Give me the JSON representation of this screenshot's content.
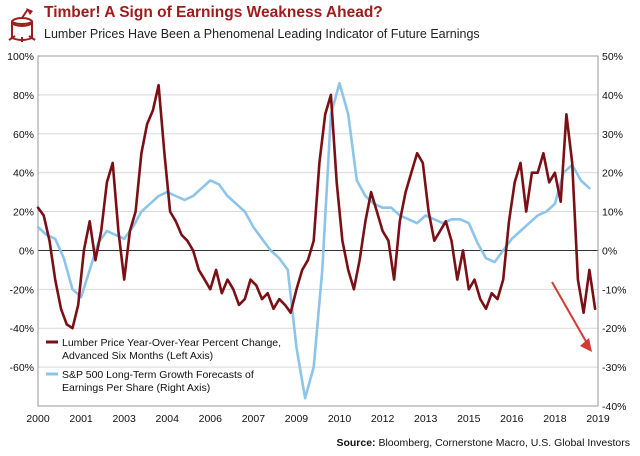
{
  "header": {
    "title": "Timber! A Sign of Earnings Weakness Ahead?",
    "subtitle": "Lumber Prices Have Been a Phenomenal Leading Indicator of Future Earnings"
  },
  "footer": {
    "source_label": "Source:",
    "source_text": "Bloomberg, Cornerstone Macro, U.S. Global Investors"
  },
  "colors": {
    "title": "#a01c1c",
    "lumber": "#7b0f16",
    "eps": "#8cc4ea",
    "arrow": "#d23b34",
    "grid": "#d9d9d9"
  },
  "icons": {
    "logo": "timber-stump-icon",
    "trend": "down-arrow-icon"
  },
  "chart_data": {
    "type": "line",
    "title": "Timber! A Sign of Earnings Weakness Ahead?",
    "subtitle": "Lumber Prices Have Been a Phenomenal Leading Indicator of Future Earnings",
    "x_tick_labels": [
      "2000",
      "2001",
      "2003",
      "2004",
      "2006",
      "2007",
      "2009",
      "2010",
      "2012",
      "2013",
      "2015",
      "2016",
      "2018",
      "2019"
    ],
    "x_tick_values": [
      2000.0,
      2001.5,
      2003.0,
      2004.5,
      2006.0,
      2007.5,
      2009.0,
      2010.5,
      2012.0,
      2013.5,
      2015.0,
      2016.5,
      2018.0,
      2019.5
    ],
    "xlim": [
      2000.0,
      2019.5
    ],
    "left_axis": {
      "ylim": [
        -80,
        100
      ],
      "ticks": [
        -60,
        -40,
        -20,
        0,
        20,
        40,
        60,
        80,
        100
      ],
      "tick_labels": [
        "-60%",
        "-40%",
        "-20%",
        "0%",
        "20%",
        "40%",
        "60%",
        "80%",
        "100%"
      ]
    },
    "right_axis": {
      "ylim": [
        -40,
        50
      ],
      "ticks": [
        -40,
        -30,
        -20,
        -10,
        0,
        10,
        20,
        30,
        40,
        50
      ],
      "tick_labels": [
        "-40%",
        "-30%",
        "-20%",
        "-10%",
        "0%",
        "10%",
        "20%",
        "30%",
        "40%",
        "50%"
      ]
    },
    "grid": true,
    "legend_position": "bottom-left",
    "annotations": [
      {
        "type": "arrow",
        "direction": "down-right",
        "near": "end of lumber series"
      }
    ],
    "series": [
      {
        "name": "Lumber Price Year-Over-Year Percent Change, Advanced Six Months (Left Axis)",
        "axis": "left",
        "color": "#7b0f16",
        "x": [
          2000.0,
          2000.2,
          2000.4,
          2000.6,
          2000.8,
          2001.0,
          2001.2,
          2001.4,
          2001.6,
          2001.8,
          2002.0,
          2002.2,
          2002.4,
          2002.6,
          2002.8,
          2003.0,
          2003.2,
          2003.4,
          2003.6,
          2003.8,
          2004.0,
          2004.2,
          2004.4,
          2004.6,
          2004.8,
          2005.0,
          2005.2,
          2005.4,
          2005.6,
          2005.8,
          2006.0,
          2006.2,
          2006.4,
          2006.6,
          2006.8,
          2007.0,
          2007.2,
          2007.4,
          2007.6,
          2007.8,
          2008.0,
          2008.2,
          2008.4,
          2008.6,
          2008.8,
          2009.0,
          2009.2,
          2009.4,
          2009.6,
          2009.8,
          2010.0,
          2010.2,
          2010.4,
          2010.6,
          2010.8,
          2011.0,
          2011.2,
          2011.4,
          2011.6,
          2011.8,
          2012.0,
          2012.2,
          2012.4,
          2012.6,
          2012.8,
          2013.0,
          2013.2,
          2013.4,
          2013.6,
          2013.8,
          2014.0,
          2014.2,
          2014.4,
          2014.6,
          2014.8,
          2015.0,
          2015.2,
          2015.4,
          2015.6,
          2015.8,
          2016.0,
          2016.2,
          2016.4,
          2016.6,
          2016.8,
          2017.0,
          2017.2,
          2017.4,
          2017.6,
          2017.8,
          2018.0,
          2018.2,
          2018.4,
          2018.6,
          2018.8,
          2019.0,
          2019.2,
          2019.4
        ],
        "values": [
          22,
          18,
          5,
          -15,
          -30,
          -38,
          -40,
          -28,
          0,
          15,
          -5,
          10,
          35,
          45,
          10,
          -15,
          10,
          20,
          50,
          65,
          72,
          85,
          50,
          20,
          15,
          8,
          5,
          0,
          -10,
          -15,
          -20,
          -10,
          -22,
          -15,
          -20,
          -28,
          -25,
          -15,
          -18,
          -25,
          -22,
          -30,
          -25,
          -28,
          -32,
          -20,
          -10,
          -5,
          5,
          45,
          70,
          80,
          35,
          5,
          -10,
          -20,
          -5,
          15,
          30,
          20,
          10,
          5,
          -15,
          15,
          30,
          40,
          50,
          45,
          20,
          5,
          10,
          15,
          5,
          -15,
          0,
          -20,
          -15,
          -25,
          -30,
          -22,
          -25,
          -15,
          15,
          35,
          45,
          20,
          40,
          40,
          50,
          35,
          40,
          25,
          70,
          45,
          -15,
          -32,
          -10,
          -30
        ]
      },
      {
        "name": "S&P 500 Long-Term Growth Forecasts of Earnings Per Share (Right Axis)",
        "axis": "right",
        "color": "#8cc4ea",
        "x": [
          2000.0,
          2000.3,
          2000.6,
          2000.9,
          2001.2,
          2001.5,
          2001.8,
          2002.1,
          2002.4,
          2002.7,
          2003.0,
          2003.3,
          2003.6,
          2003.9,
          2004.2,
          2004.5,
          2004.8,
          2005.1,
          2005.4,
          2005.7,
          2006.0,
          2006.3,
          2006.6,
          2006.9,
          2007.2,
          2007.5,
          2007.8,
          2008.1,
          2008.4,
          2008.7,
          2009.0,
          2009.3,
          2009.6,
          2009.9,
          2010.2,
          2010.5,
          2010.8,
          2011.1,
          2011.4,
          2011.7,
          2012.0,
          2012.3,
          2012.6,
          2012.9,
          2013.2,
          2013.5,
          2013.8,
          2014.1,
          2014.4,
          2014.7,
          2015.0,
          2015.3,
          2015.6,
          2015.9,
          2016.2,
          2016.5,
          2016.8,
          2017.1,
          2017.4,
          2017.7,
          2018.0,
          2018.3,
          2018.6,
          2018.9,
          2019.2
        ],
        "values": [
          6,
          4,
          3,
          -2,
          -10,
          -12,
          -5,
          2,
          5,
          4,
          3,
          6,
          10,
          12,
          14,
          15,
          14,
          13,
          14,
          16,
          18,
          17,
          14,
          12,
          10,
          6,
          3,
          0,
          -2,
          -5,
          -25,
          -38,
          -30,
          -5,
          35,
          43,
          35,
          18,
          14,
          12,
          11,
          11,
          9,
          8,
          7,
          9,
          8,
          7,
          8,
          8,
          7,
          2,
          -2,
          -3,
          0,
          3,
          5,
          7,
          9,
          10,
          12,
          20,
          22,
          18,
          16
        ]
      }
    ]
  },
  "legend": {
    "lumber": "Lumber Price Year-Over-Year Percent Change,",
    "lumber_line2": "Advanced Six Months (Left Axis)",
    "eps": "S&P 500 Long-Term Growth Forecasts of",
    "eps_line2": "Earnings Per Share (Right Axis)"
  }
}
